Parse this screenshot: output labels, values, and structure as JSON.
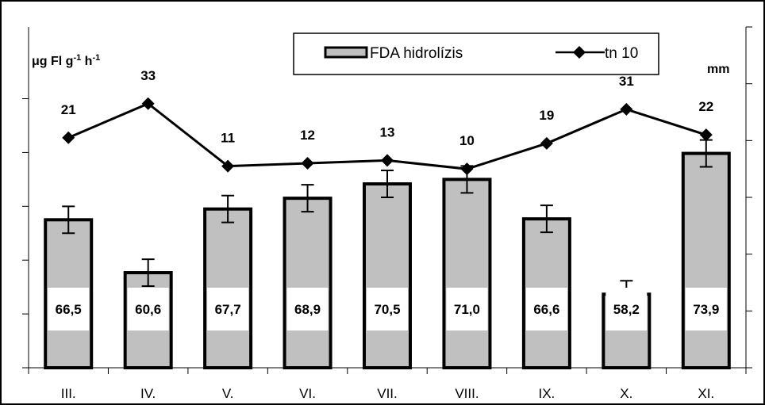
{
  "chart_data": {
    "type": "bar",
    "categories": [
      "III.",
      "IV.",
      "V.",
      "VI.",
      "VII.",
      "VIII.",
      "IX.",
      "X.",
      "XI."
    ],
    "series": [
      {
        "name": "FDA hidrolízis",
        "type": "bar",
        "values": [
          66.5,
          60.6,
          67.7,
          68.9,
          70.5,
          71.0,
          66.6,
          58.2,
          73.9
        ],
        "value_labels": [
          "66,5",
          "60,6",
          "67,7",
          "68,9",
          "70,5",
          "71,0",
          "66,6",
          "58,2",
          "73,9"
        ],
        "error": 1.5,
        "fill": "#c0c0c0"
      },
      {
        "name": "tn 10",
        "type": "line",
        "marker": "diamond",
        "values": [
          21,
          33,
          11,
          12,
          13,
          10,
          19,
          31,
          22
        ],
        "value_labels": [
          "21",
          "33",
          "11",
          "12",
          "13",
          "10",
          "19",
          "31",
          "22"
        ],
        "color": "#000000"
      }
    ],
    "ylabel_left": "μg Fl g-1 h-1",
    "ylabel_right": "mm",
    "ylim_left": [
      50,
      88
    ],
    "ylim_right": [
      -60,
      60
    ],
    "legend": "top-center",
    "grid": false
  }
}
